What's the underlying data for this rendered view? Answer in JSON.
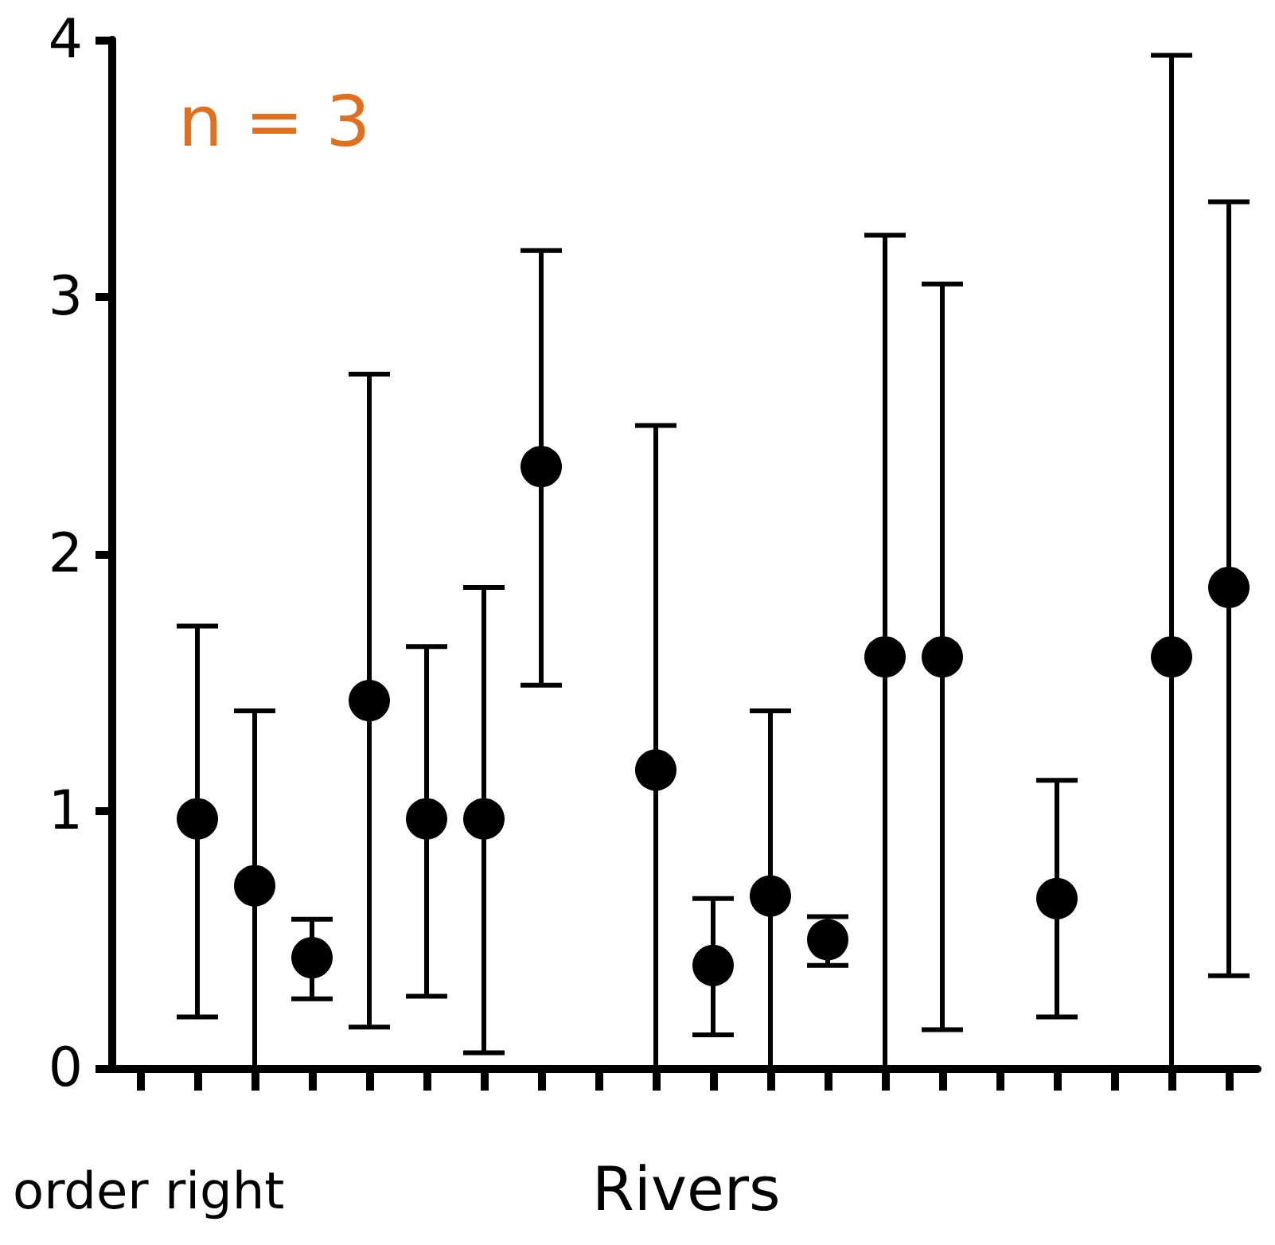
{
  "chart_data": {
    "type": "scatter",
    "xlabel": "Rivers",
    "annotations": [
      "n = 3",
      "order right"
    ],
    "categories": [
      null,
      null,
      null,
      null,
      null,
      null,
      null,
      null,
      null,
      null,
      null,
      null,
      null,
      null,
      null,
      null,
      null,
      null,
      null,
      null
    ],
    "series": [
      {
        "color": "#000000",
        "values": [
          null,
          0.97,
          0.71,
          0.43,
          1.43,
          0.97,
          0.97,
          2.34,
          null,
          1.16,
          0.4,
          0.67,
          0.5,
          1.6,
          1.6,
          null,
          0.66,
          null,
          1.6,
          1.87
        ],
        "errors": [
          null,
          [
            0.2,
            1.72
          ],
          [
            0,
            1.39
          ],
          [
            0.27,
            0.58
          ],
          [
            0.16,
            2.7
          ],
          [
            0.28,
            1.64
          ],
          [
            0.06,
            1.87
          ],
          [
            1.49,
            3.18
          ],
          null,
          [
            0,
            2.5
          ],
          [
            0.13,
            0.66
          ],
          [
            0,
            1.39
          ],
          [
            0.4,
            0.59
          ],
          [
            0,
            3.24
          ],
          [
            0.15,
            3.05
          ],
          null,
          [
            0.2,
            1.12
          ],
          null,
          [
            0,
            3.94
          ],
          [
            0.36,
            3.37
          ]
        ]
      }
    ],
    "ylim": [
      0,
      4
    ],
    "yticks": [
      0,
      1,
      2,
      3,
      4
    ],
    "grid": false,
    "marker": "circle"
  }
}
